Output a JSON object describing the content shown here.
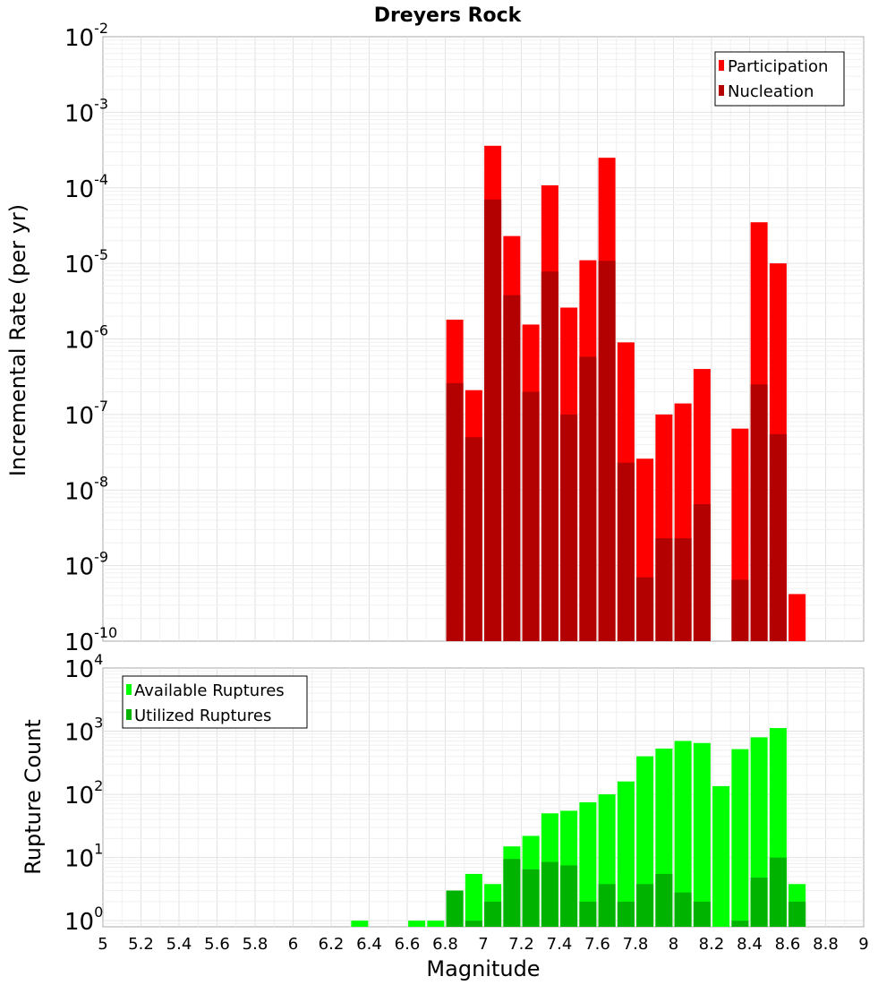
{
  "chart_data": [
    {
      "type": "bar",
      "title": "Dreyers Rock",
      "xlabel": "",
      "ylabel": "Incremental Rate (per yr)",
      "yscale": "log",
      "ylim": [
        1e-10,
        0.01
      ],
      "xlim": [
        5,
        9
      ],
      "ytick_exponents": [
        "-10",
        "-9",
        "-8",
        "-7",
        "-6",
        "-5",
        "-4",
        "-3",
        "-2"
      ],
      "grid": true,
      "legend_position": "top-right",
      "series": [
        {
          "name": "Participation",
          "color": "#ff0000",
          "x": [
            6.85,
            6.95,
            7.05,
            7.15,
            7.25,
            7.35,
            7.45,
            7.55,
            7.65,
            7.75,
            7.85,
            7.95,
            8.05,
            8.15,
            8.35,
            8.45,
            8.55,
            8.65
          ],
          "values": [
            1.8e-06,
            2.1e-07,
            0.00036,
            2.3e-05,
            1.55e-06,
            0.000108,
            2.6e-06,
            1.1e-05,
            0.00025,
            9e-07,
            2.6e-08,
            1e-07,
            1.4e-07,
            4e-07,
            6.5e-08,
            3.5e-05,
            1e-05,
            4.2e-10
          ]
        },
        {
          "name": "Nucleation",
          "color": "#b30000",
          "x": [
            6.85,
            6.95,
            7.05,
            7.15,
            7.25,
            7.35,
            7.45,
            7.55,
            7.65,
            7.75,
            7.85,
            7.95,
            8.05,
            8.15,
            8.35,
            8.45,
            8.55
          ],
          "values": [
            2.6e-07,
            5e-08,
            7e-05,
            3.8e-06,
            2e-07,
            7.8e-06,
            1e-07,
            5.8e-07,
            1.08e-05,
            2.3e-08,
            7e-10,
            2.3e-09,
            2.3e-09,
            6.5e-09,
            6.5e-10,
            2.5e-07,
            5.5e-08
          ]
        }
      ]
    },
    {
      "type": "bar",
      "title": "",
      "xlabel": "Magnitude",
      "ylabel": "Rupture Count",
      "yscale": "log",
      "ylim": [
        0.8,
        10000
      ],
      "xlim": [
        5,
        9
      ],
      "ytick_exponents": [
        "0",
        "1",
        "2",
        "3",
        "4"
      ],
      "xticks": [
        "5",
        "5.2",
        "5.4",
        "5.6",
        "5.8",
        "6",
        "6.2",
        "6.4",
        "6.6",
        "6.8",
        "7",
        "7.2",
        "7.4",
        "7.6",
        "7.8",
        "8",
        "8.2",
        "8.4",
        "8.6",
        "8.8",
        "9"
      ],
      "grid": true,
      "legend_position": "top-left",
      "series": [
        {
          "name": "Available Ruptures",
          "color": "#00ff00",
          "x": [
            6.35,
            6.65,
            6.75,
            6.85,
            6.95,
            7.05,
            7.15,
            7.25,
            7.35,
            7.45,
            7.55,
            7.65,
            7.75,
            7.85,
            7.95,
            8.05,
            8.15,
            8.25,
            8.35,
            8.45,
            8.55,
            8.65
          ],
          "values": [
            1,
            1,
            1,
            3,
            5.5,
            3.8,
            15,
            22,
            50,
            55,
            75,
            100,
            160,
            400,
            530,
            700,
            650,
            135,
            520,
            800,
            1120,
            3.8
          ]
        },
        {
          "name": "Utilized Ruptures",
          "color": "#00b300",
          "x": [
            6.85,
            6.95,
            7.05,
            7.15,
            7.25,
            7.35,
            7.45,
            7.55,
            7.65,
            7.75,
            7.85,
            7.95,
            8.05,
            8.15,
            8.35,
            8.45,
            8.55,
            8.65
          ],
          "values": [
            3,
            1,
            2,
            9.5,
            6.5,
            8.5,
            7.5,
            2,
            3.8,
            2,
            3.8,
            5.5,
            2.8,
            2,
            1,
            4.8,
            10,
            2
          ]
        }
      ]
    }
  ]
}
